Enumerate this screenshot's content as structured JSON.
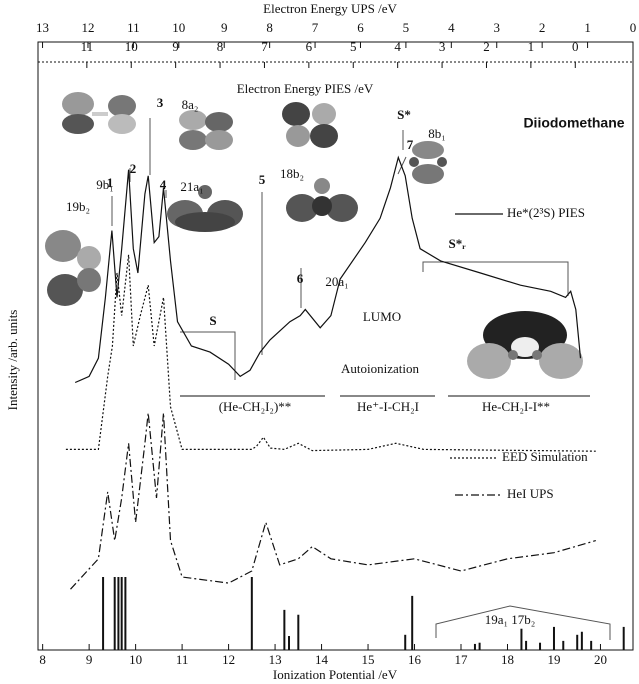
{
  "chart_data": {
    "type": "line",
    "title": "Diiodomethane",
    "x_label": "Ionization Potential /eV",
    "y_label": "Intensity /arb. units",
    "x2_label": "Electron Energy UPS /eV",
    "x3_label": "Electron Energy PIES /eV",
    "xlim": [
      7.9,
      20.7
    ],
    "xticks": [
      8,
      9,
      10,
      11,
      12,
      13,
      14,
      15,
      16,
      17,
      18,
      19,
      20
    ],
    "x2lim": [
      13.1,
      0
    ],
    "x2ticks": [
      13,
      12,
      11,
      10,
      9,
      8,
      7,
      6,
      5,
      4,
      3,
      2,
      1,
      0
    ],
    "x3lim": [
      12.1,
      -1.3
    ],
    "x3ticks": [
      11,
      10,
      9,
      8,
      7,
      6,
      5,
      4,
      3,
      2,
      1,
      0
    ],
    "ylim": [
      0,
      100
    ],
    "series": [
      {
        "name": "He*(2³S) PIES",
        "color": "#111111",
        "style": "solid",
        "x": [
          8.7,
          9.0,
          9.2,
          9.35,
          9.49,
          9.6,
          9.7,
          9.85,
          9.95,
          10.05,
          10.2,
          10.27,
          10.4,
          10.5,
          10.6,
          10.75,
          10.9,
          11.2,
          11.6,
          12.0,
          12.25,
          12.46,
          12.68,
          12.89,
          13.32,
          13.54,
          13.65,
          13.97,
          14.2,
          14.4,
          14.94,
          15.26,
          15.48,
          15.65,
          15.8,
          15.95,
          16.12,
          16.56,
          17.42,
          18.28,
          18.93,
          19.25,
          19.36,
          19.47,
          19.57
        ],
        "values": [
          44,
          45,
          48,
          58,
          69,
          58,
          66,
          79,
          66,
          62,
          75,
          78,
          67,
          68,
          76,
          64,
          54,
          50,
          49,
          47,
          45,
          46,
          49,
          51,
          54,
          55,
          56,
          53,
          55,
          61,
          67,
          71,
          76,
          81,
          78,
          71,
          66,
          64,
          62,
          60,
          59,
          58,
          59,
          56,
          48
        ]
      },
      {
        "name": "EED Simulation",
        "color": "#111111",
        "style": "dotted",
        "x": [
          8.5,
          9.2,
          9.4,
          9.5,
          9.6,
          9.7,
          9.85,
          9.95,
          10.1,
          10.27,
          10.4,
          10.6,
          10.75,
          11.0,
          12.5,
          12.6,
          12.75,
          12.9,
          13.2,
          13.5,
          13.8,
          15.0,
          15.6,
          16.2,
          19.9
        ],
        "values": [
          33,
          33,
          45,
          50,
          62,
          55,
          65,
          50,
          55,
          60,
          50,
          58,
          40,
          33,
          33,
          33.5,
          35,
          33.2,
          33,
          34,
          32.8,
          33,
          34,
          33,
          32.7
        ]
      },
      {
        "name": "HeI UPS",
        "color": "#111111",
        "style": "dashdot",
        "x": [
          8.6,
          9.2,
          9.4,
          9.55,
          9.7,
          9.85,
          10.0,
          10.2,
          10.27,
          10.45,
          10.6,
          10.75,
          11.0,
          12.0,
          12.5,
          12.8,
          13.1,
          13.5,
          13.8,
          14.2,
          15.0,
          16.0,
          17.0,
          18.0,
          19.0,
          19.9
        ],
        "values": [
          10,
          15,
          26,
          18,
          25,
          34,
          21,
          34,
          39,
          25,
          39,
          18,
          12,
          11,
          13,
          21,
          14,
          15,
          17,
          15,
          14,
          15,
          13,
          15,
          16,
          18
        ]
      }
    ],
    "sticks": {
      "color": "#111111",
      "x": [
        9.3,
        9.55,
        9.63,
        9.7,
        9.78,
        12.5,
        13.2,
        13.3,
        13.5,
        15.8,
        15.95,
        17.3,
        17.4,
        18.3,
        18.4,
        18.7,
        19.0,
        19.2,
        19.5,
        19.6,
        19.8,
        20.5
      ],
      "values": [
        12,
        12,
        12,
        12,
        12,
        12,
        6.6,
        2.3,
        5.8,
        2.5,
        8.9,
        1,
        1.2,
        3.5,
        1.5,
        1.2,
        3.8,
        1.5,
        2.5,
        3,
        1.5,
        3.8
      ]
    },
    "annotations": [
      "1",
      "19b₂",
      "2",
      "9b₁",
      "3",
      "8a₂",
      "4",
      "21a₁",
      "5",
      "18b₂",
      "6",
      "20a₁",
      "S*",
      "7",
      "8b₁",
      "S",
      "S*ᵣ",
      "LUMO",
      "Autoionization",
      "(He-CH₂I₂)**",
      "He⁺-I-CH₂I",
      "He-CH₂I-I**",
      "19a₁ 17b₂"
    ]
  }
}
